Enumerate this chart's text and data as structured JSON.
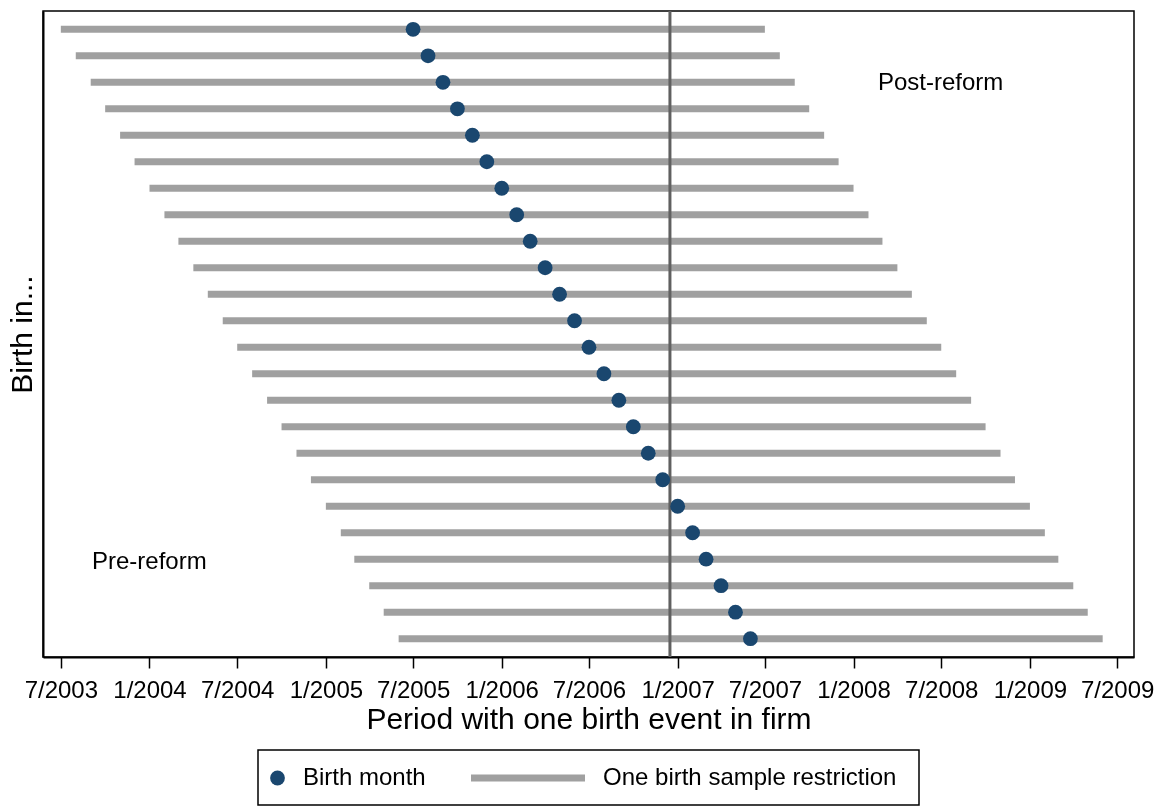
{
  "chart_data": {
    "type": "bar",
    "orientation": "horizontal",
    "xlabel": "Period with one birth event in firm",
    "ylabel": "Birth in...",
    "categories": [
      null,
      null,
      null,
      null,
      null,
      null,
      null,
      null,
      null,
      null,
      null,
      null,
      null,
      null,
      null,
      null,
      null,
      null,
      null,
      null,
      null,
      null,
      null,
      null
    ],
    "xlim": [
      "2003-05-25",
      "2009-08-05"
    ],
    "xticks": [
      {
        "value": "2003-07",
        "label": "7/2003"
      },
      {
        "value": "2004-01",
        "label": "1/2004"
      },
      {
        "value": "2004-07",
        "label": "7/2004"
      },
      {
        "value": "2005-01",
        "label": "1/2005"
      },
      {
        "value": "2005-07",
        "label": "7/2005"
      },
      {
        "value": "2006-01",
        "label": "1/2006"
      },
      {
        "value": "2006-07",
        "label": "7/2006"
      },
      {
        "value": "2007-01",
        "label": "1/2007"
      },
      {
        "value": "2007-07",
        "label": "7/2007"
      },
      {
        "value": "2008-01",
        "label": "1/2008"
      },
      {
        "value": "2008-07",
        "label": "7/2008"
      },
      {
        "value": "2009-01",
        "label": "1/2009"
      },
      {
        "value": "2009-07",
        "label": "7/2009"
      }
    ],
    "tick_labels": "x",
    "legend": "bottom",
    "marker": "circle",
    "series": [
      {
        "name": "Birth month",
        "type": "scatter",
        "color": "#1a476f",
        "values": [
          12965,
          12996,
          13027,
          13057,
          13088,
          13118,
          13149,
          13180,
          13208,
          13239,
          13269,
          13300,
          13330,
          13361,
          13392,
          13422,
          13453,
          13483,
          13514,
          13545,
          13573,
          13604,
          13634,
          13665
        ]
      },
      {
        "name": "One birth sample restriction",
        "type": "bar",
        "color": "#a0a0a0",
        "base": [
          12234,
          12265,
          12296,
          12326,
          12357,
          12387,
          12418,
          12449,
          12478,
          12509,
          12539,
          12570,
          12600,
          12631,
          12662,
          12692,
          12723,
          12753,
          12784,
          12815,
          12843,
          12874,
          12904,
          12935
        ],
        "values": [
          1461,
          1461,
          1461,
          1461,
          1461,
          1461,
          1461,
          1461,
          1461,
          1461,
          1461,
          1461,
          1461,
          1461,
          1461,
          1461,
          1461,
          1461,
          1461,
          1461,
          1461,
          1461,
          1461,
          1461
        ]
      }
    ],
    "ref_lines": [
      {
        "axis": "x",
        "value": 13498,
        "color": "#606060",
        "line_style": "solid"
      }
    ],
    "annotations": [
      "Post-reform",
      "Pre-reform"
    ]
  }
}
